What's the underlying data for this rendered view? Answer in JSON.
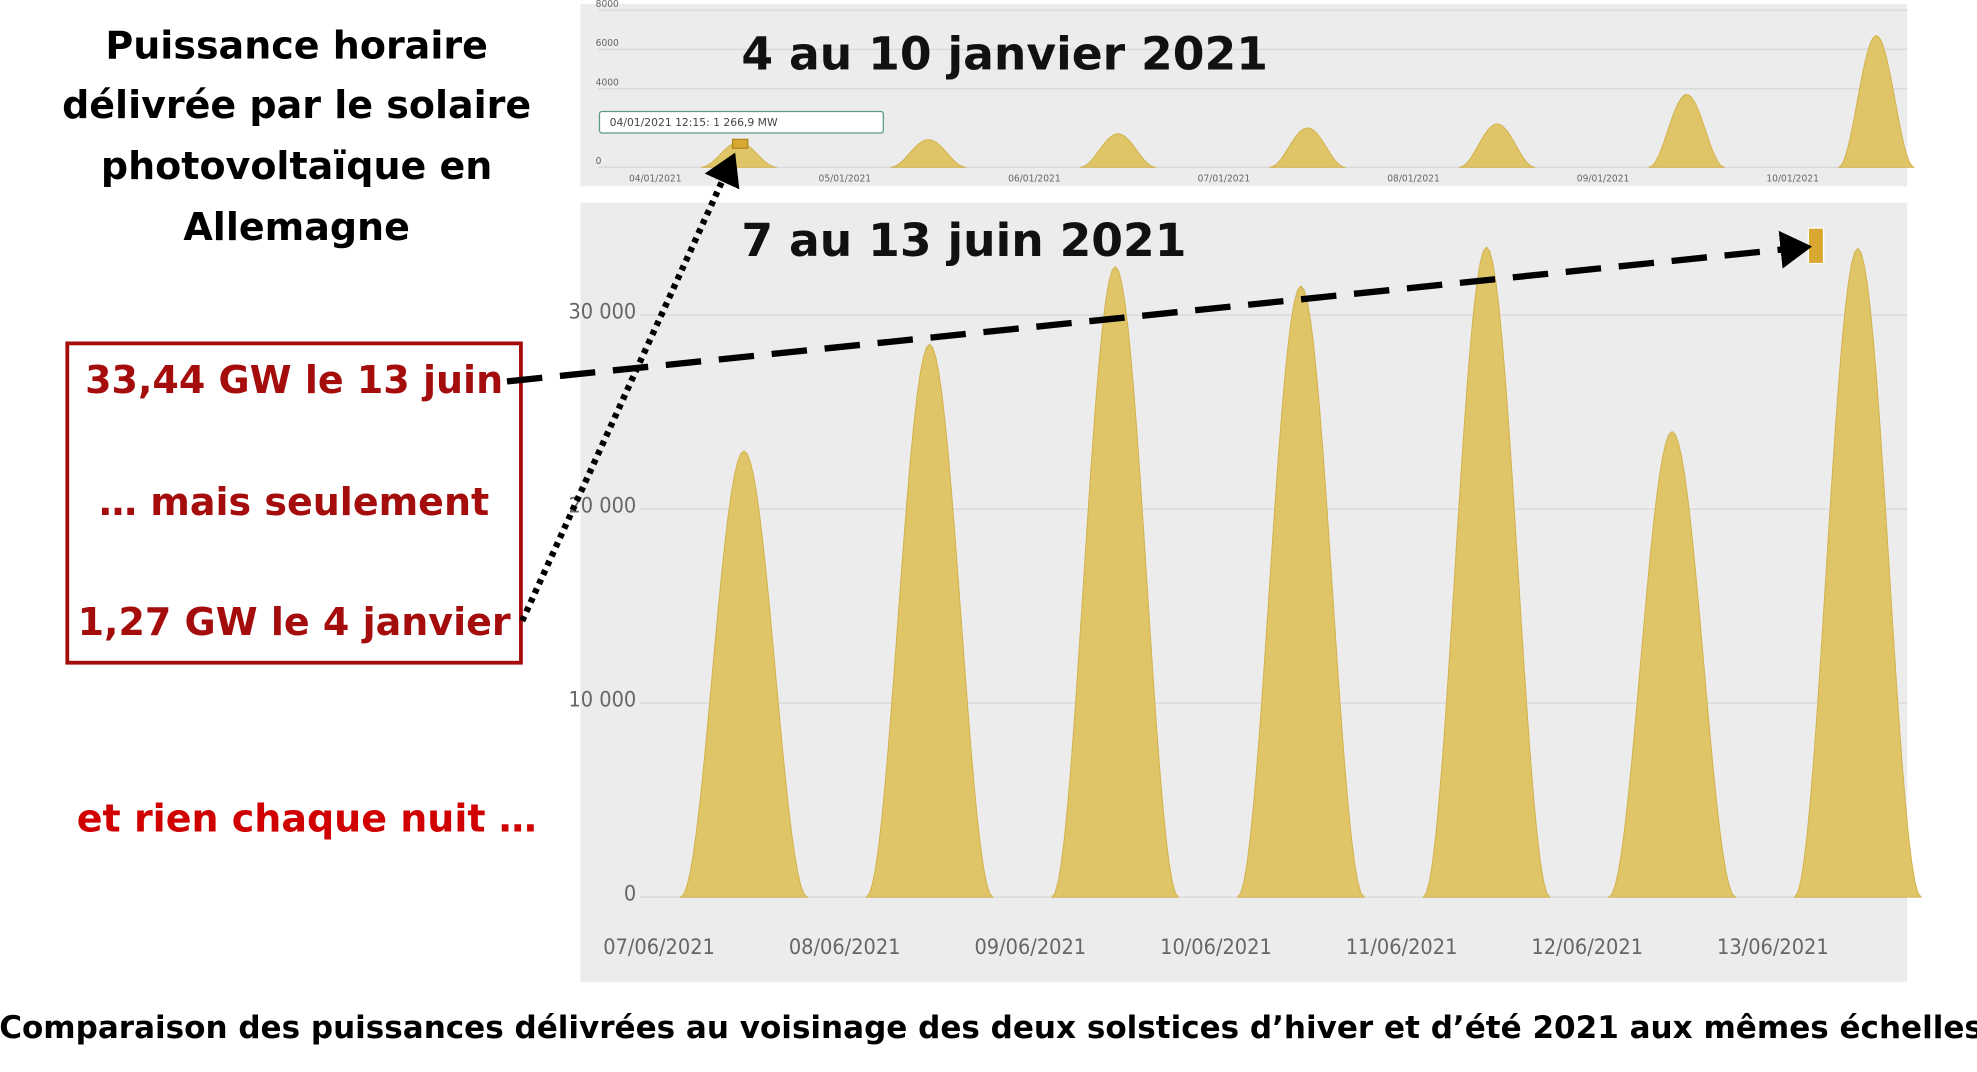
{
  "left_panel": {
    "title": [
      "Puissance horaire",
      "délivrée par le solaire",
      "photovoltaïque en",
      "Allemagne"
    ],
    "box": [
      "33,44 GW le 13 juin",
      "… mais seulement",
      "1,27 GW le 4 janvier"
    ],
    "note": "et rien chaque nuit …"
  },
  "caption": "Comparaison des puissances délivrées au voisinage des deux solstices d’hiver et d’été 2021 aux mêmes échelles",
  "chart_data": [
    {
      "type": "area",
      "title": "4 au 10 janvier 2021",
      "annotation": "04/01/2021 12:15: 1 266,9 MW",
      "categories": [
        "04/01/2021",
        "05/01/2021",
        "06/01/2021",
        "07/01/2021",
        "08/01/2021",
        "09/01/2021",
        "10/01/2021"
      ],
      "values": [
        1266.9,
        1400,
        1700,
        2000,
        2200,
        3700,
        6700
      ],
      "color": "#e0c568",
      "ylim": [
        0,
        8000
      ],
      "yticks": [
        0,
        4000,
        6000,
        8000
      ],
      "grid": true
    },
    {
      "type": "area",
      "title": "7 au 13 juin 2021",
      "categories": [
        "07/06/2021",
        "08/06/2021",
        "09/06/2021",
        "10/06/2021",
        "11/06/2021",
        "12/06/2021",
        "13/06/2021"
      ],
      "values": [
        23000,
        28500,
        32500,
        31500,
        33500,
        24000,
        33440
      ],
      "color": "#e0c568",
      "ylim": [
        0,
        35600
      ],
      "yticks": [
        0,
        {
          "value": 10000,
          "label": "10 000"
        },
        {
          "value": 20000,
          "label": "20 000"
        },
        {
          "value": 30000,
          "label": "30 000"
        }
      ],
      "grid": true
    }
  ]
}
